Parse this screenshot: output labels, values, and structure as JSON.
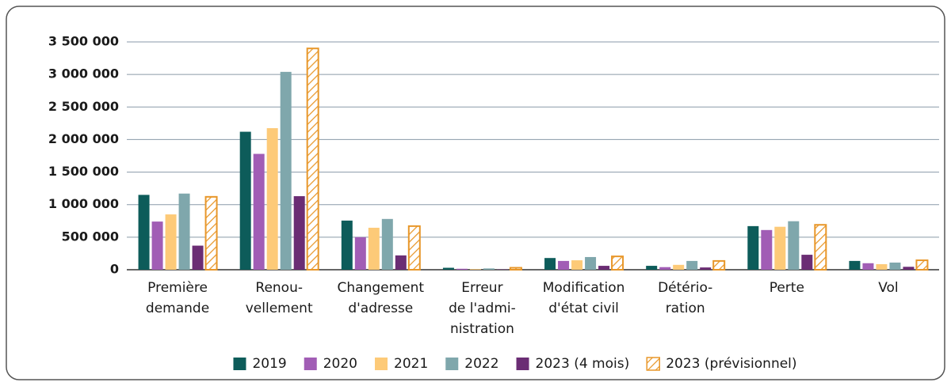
{
  "chart_data": {
    "type": "bar",
    "categories": [
      [
        "Première",
        "demande"
      ],
      [
        "Renou-",
        "vellement"
      ],
      [
        "Changement",
        "d'adresse"
      ],
      [
        "Erreur",
        "de l'admi-",
        "nistration"
      ],
      [
        "Modification",
        "d'état civil"
      ],
      [
        "Détério-",
        "ration"
      ],
      [
        "Perte"
      ],
      [
        "Vol"
      ]
    ],
    "series": [
      {
        "name": "2019",
        "color": "#0d5c5a",
        "values": [
          1150000,
          2120000,
          755000,
          30000,
          180000,
          60000,
          670000,
          135000
        ]
      },
      {
        "name": "2020",
        "color": "#a15db5",
        "values": [
          740000,
          1780000,
          500000,
          15000,
          135000,
          40000,
          610000,
          100000
        ]
      },
      {
        "name": "2021",
        "color": "#fdca78",
        "values": [
          850000,
          2175000,
          645000,
          10000,
          145000,
          75000,
          660000,
          85000
        ]
      },
      {
        "name": "2022",
        "color": "#7fa7ac",
        "values": [
          1170000,
          3040000,
          780000,
          20000,
          195000,
          135000,
          745000,
          110000
        ]
      },
      {
        "name": "2023 (4 mois)",
        "color": "#6b2d74",
        "values": [
          370000,
          1130000,
          220000,
          5000,
          60000,
          35000,
          230000,
          45000
        ]
      },
      {
        "name": "2023 (prévisionnel)",
        "color": "#e8972a",
        "pattern": "hatch",
        "values": [
          1120000,
          3400000,
          670000,
          30000,
          205000,
          135000,
          690000,
          145000
        ]
      }
    ],
    "ylim": [
      0,
      3500000
    ],
    "yticks": [
      0,
      {
        "value": 500000,
        "label": "500 000"
      },
      {
        "value": 1000000,
        "label": "1 000 000"
      },
      {
        "value": 1500000,
        "label": "1 500 000"
      },
      {
        "value": 2000000,
        "label": "2 000 000"
      },
      {
        "value": 2500000,
        "label": "2 500 000"
      },
      {
        "value": 3000000,
        "label": "3 000 000"
      },
      {
        "value": 3500000,
        "label": "3 500 000"
      }
    ],
    "grid": true,
    "legend": "bottom"
  }
}
